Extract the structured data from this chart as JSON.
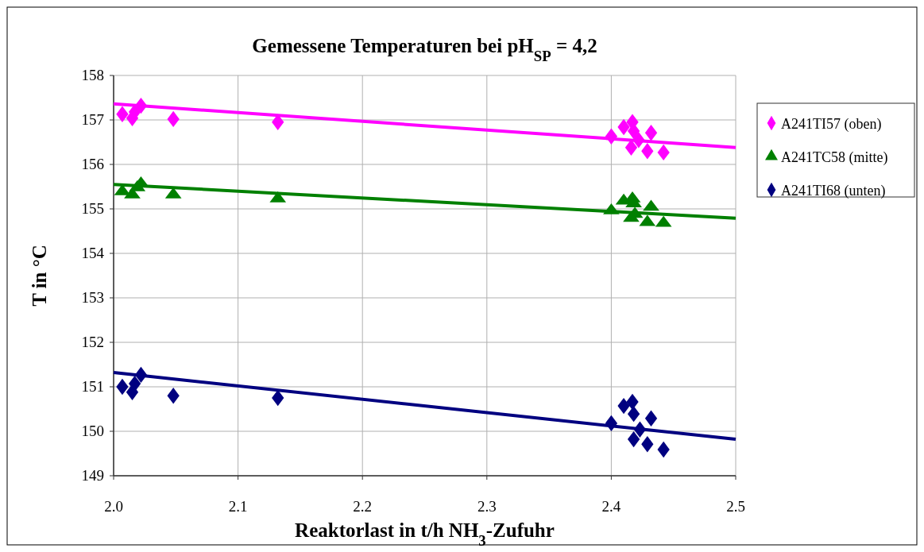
{
  "chart_data": {
    "type": "scatter",
    "title": "Gemessene Temperaturen bei pH$_{SP}$ = 4,2",
    "xlabel": "Reaktorlast in t/h NH$_{3}$-Zufuhr",
    "ylabel": "T in °C",
    "xlim": [
      2.0,
      2.5
    ],
    "xticks": [
      {
        "value": 2.0,
        "label": "2.0"
      },
      2.1,
      2.2,
      2.3,
      2.4,
      {
        "value": 2.5,
        "label": "2.5"
      }
    ],
    "ylim": [
      149,
      158
    ],
    "yticks": [
      149,
      150,
      151,
      152,
      153,
      154,
      155,
      156,
      157,
      158
    ],
    "grid": true,
    "legend": "right",
    "series": [
      {
        "name": "A241TI57 (oben)",
        "color": "#ff00ff",
        "marker": "diamond",
        "x": [
          2.007,
          2.015,
          2.017,
          2.022,
          2.048,
          2.132,
          2.4,
          2.41,
          2.417,
          2.418,
          2.416,
          2.422,
          2.432,
          2.429,
          2.442
        ],
        "values": [
          157.13,
          157.04,
          157.18,
          157.32,
          157.02,
          156.95,
          156.63,
          156.84,
          156.95,
          156.75,
          156.38,
          156.55,
          156.71,
          156.3,
          156.27
        ]
      },
      {
        "name": "A241TC58 (mitte)",
        "color": "#008000",
        "marker": "triangle",
        "x": [
          2.007,
          2.015,
          2.019,
          2.022,
          2.048,
          2.132,
          2.4,
          2.41,
          2.417,
          2.418,
          2.416,
          2.419,
          2.432,
          2.429,
          2.442
        ],
        "values": [
          155.39,
          155.32,
          155.48,
          155.57,
          155.32,
          155.23,
          154.96,
          155.18,
          155.23,
          155.12,
          154.79,
          154.88,
          155.04,
          154.7,
          154.68
        ]
      },
      {
        "name": "A241TI68 (unten)",
        "color": "#000080",
        "marker": "diamond",
        "x": [
          2.007,
          2.015,
          2.017,
          2.022,
          2.048,
          2.132,
          2.4,
          2.41,
          2.417,
          2.418,
          2.418,
          2.423,
          2.432,
          2.429,
          2.442
        ],
        "values": [
          151.0,
          150.88,
          151.07,
          151.27,
          150.8,
          150.75,
          150.18,
          150.57,
          150.66,
          150.39,
          149.82,
          150.04,
          150.29,
          149.71,
          149.59
        ]
      },
      {
        "type": "line",
        "color": "#ff00ff",
        "marker": "none",
        "x": [
          2.0,
          2.5
        ],
        "values": [
          157.36,
          156.38
        ]
      },
      {
        "type": "line",
        "color": "#008000",
        "marker": "none",
        "x": [
          2.0,
          2.5
        ],
        "values": [
          155.55,
          154.79
        ]
      },
      {
        "type": "line",
        "color": "#000080",
        "marker": "none",
        "x": [
          2.0,
          2.5
        ],
        "values": [
          151.32,
          149.82
        ]
      }
    ]
  }
}
